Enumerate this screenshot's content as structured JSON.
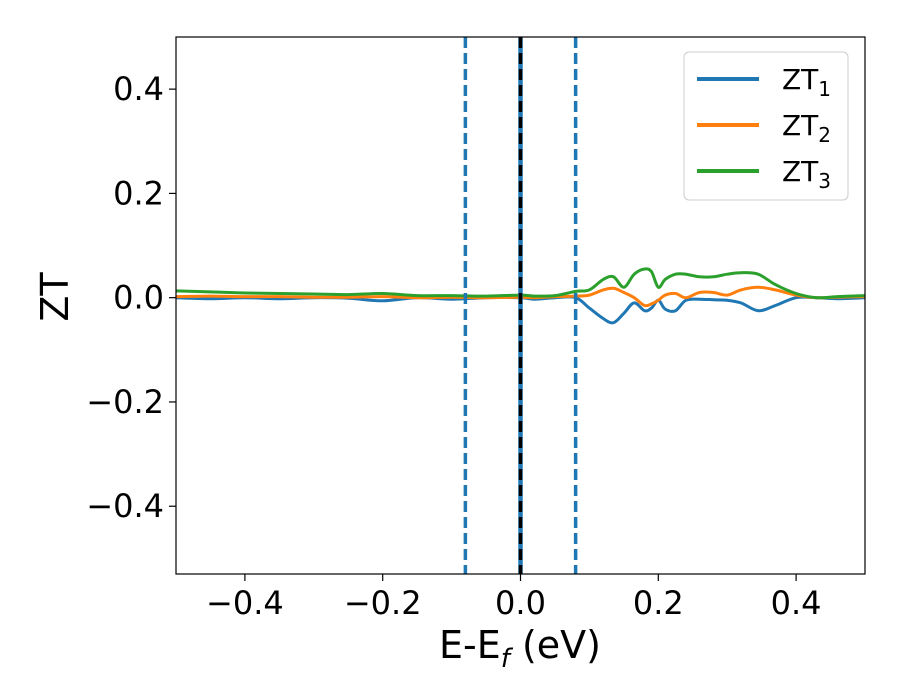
{
  "chart_data": {
    "type": "line",
    "title": "",
    "xlabel": "E-E",
    "xlabel_sub": "f",
    "xlabel_unit": " (eV)",
    "ylabel": "ZT",
    "xlim": [
      -0.5,
      0.5
    ],
    "ylim": [
      -0.53,
      0.5
    ],
    "xticks": [
      -0.4,
      -0.2,
      0.0,
      0.2,
      0.4
    ],
    "xtick_labels": [
      "−0.4",
      "−0.2",
      "0.0",
      "0.2",
      "0.4"
    ],
    "yticks": [
      -0.4,
      -0.2,
      0.0,
      0.2,
      0.4
    ],
    "ytick_labels": [
      "−0.4",
      "−0.2",
      "0.0",
      "0.2",
      "0.4"
    ],
    "grid": false,
    "legend_position": "top-right",
    "x": [
      -0.5,
      -0.45,
      -0.4,
      -0.35,
      -0.3,
      -0.25,
      -0.2,
      -0.15,
      -0.1,
      -0.05,
      0.0,
      0.02,
      0.05,
      0.08,
      0.1,
      0.12,
      0.135,
      0.15,
      0.165,
      0.18,
      0.19,
      0.2,
      0.21,
      0.225,
      0.24,
      0.26,
      0.28,
      0.3,
      0.32,
      0.345,
      0.37,
      0.4,
      0.43,
      0.46,
      0.5
    ],
    "series": [
      {
        "name": "ZT",
        "name_sub": "1",
        "color": "#1f77b4",
        "values": [
          0.0,
          -0.002,
          0.0,
          -0.002,
          0.0,
          -0.001,
          -0.006,
          0.0,
          -0.003,
          0.0,
          0.0,
          -0.003,
          0.0,
          0.0,
          -0.02,
          -0.04,
          -0.048,
          -0.03,
          -0.01,
          -0.025,
          -0.02,
          -0.005,
          -0.022,
          -0.025,
          -0.005,
          -0.003,
          -0.004,
          -0.005,
          -0.01,
          -0.025,
          -0.015,
          0.0,
          0.0,
          -0.002,
          0.0
        ]
      },
      {
        "name": "ZT",
        "name_sub": "2",
        "color": "#ff7f0e",
        "values": [
          0.002,
          0.003,
          0.002,
          0.002,
          0.001,
          0.001,
          0.002,
          0.0,
          0.001,
          0.0,
          0.001,
          0.0,
          0.002,
          0.003,
          0.005,
          0.015,
          0.018,
          0.01,
          0.0,
          -0.015,
          -0.012,
          -0.005,
          0.005,
          0.008,
          0.0,
          0.01,
          0.01,
          0.005,
          0.015,
          0.02,
          0.015,
          0.005,
          0.0,
          0.001,
          0.002
        ]
      },
      {
        "name": "ZT",
        "name_sub": "3",
        "color": "#2ca02c",
        "values": [
          0.013,
          0.011,
          0.009,
          0.008,
          0.007,
          0.006,
          0.008,
          0.004,
          0.004,
          0.003,
          0.005,
          0.003,
          0.004,
          0.012,
          0.015,
          0.035,
          0.04,
          0.02,
          0.045,
          0.055,
          0.05,
          0.02,
          0.035,
          0.045,
          0.045,
          0.04,
          0.04,
          0.045,
          0.048,
          0.045,
          0.025,
          0.008,
          0.0,
          0.002,
          0.004
        ]
      }
    ],
    "vertical_lines": [
      {
        "x": -0.08,
        "style": "dashed",
        "color": "#1f77b4"
      },
      {
        "x": 0.0,
        "style": "solid",
        "color": "#1f77b4"
      },
      {
        "x": 0.0,
        "style": "dashed",
        "color": "#000000"
      },
      {
        "x": 0.08,
        "style": "dashed",
        "color": "#1f77b4"
      }
    ]
  }
}
